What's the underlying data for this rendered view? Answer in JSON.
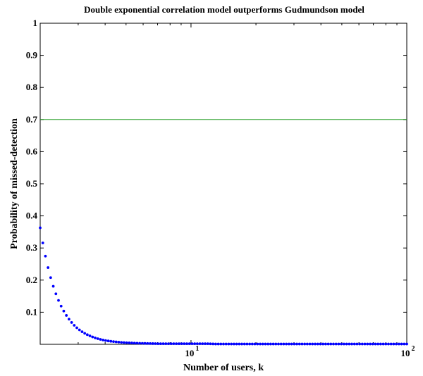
{
  "chart_data": {
    "type": "line",
    "title": "Double exponential correlation model outperforms Gudmundson model",
    "xlabel": "Number of users, k",
    "ylabel": "Probability of missed-detection",
    "xscale": "log",
    "xlim": [
      2,
      100
    ],
    "ylim": [
      0,
      1
    ],
    "grid": false,
    "legend": "none",
    "xticks": [
      {
        "value": 10,
        "base": "10",
        "exp": "1"
      },
      {
        "value": 100,
        "base": "10",
        "exp": "2"
      }
    ],
    "yticks": [
      "0.1",
      "0.2",
      "0.3",
      "0.4",
      "0.5",
      "0.6",
      "0.7",
      "0.8",
      "0.9",
      "1"
    ],
    "series": [
      {
        "style": "horizontal-line",
        "color": "#2ca02c",
        "x": [
          2,
          100
        ],
        "y": [
          0.7,
          0.7
        ]
      },
      {
        "style": "dots",
        "color": "#0000ff",
        "x": [
          2,
          3,
          4,
          5,
          6,
          7,
          8,
          9,
          10,
          11,
          12,
          13,
          14,
          15,
          16,
          17,
          18,
          19,
          20,
          21,
          22,
          23,
          24,
          25,
          26,
          27,
          28,
          29,
          30,
          31,
          32,
          33,
          34,
          35,
          36,
          37,
          38,
          39,
          40,
          41,
          42,
          43,
          44,
          45,
          46,
          47,
          48,
          49,
          50,
          51,
          52,
          53,
          54,
          55,
          56,
          57,
          58,
          59,
          60,
          61,
          62,
          63,
          64,
          65,
          66,
          67,
          68,
          69,
          70,
          71,
          72,
          73,
          74,
          75,
          76,
          77,
          78,
          79,
          80,
          81,
          82,
          83,
          84,
          85,
          86,
          87,
          88,
          89,
          90,
          91,
          92,
          93,
          94,
          95,
          96,
          97,
          98,
          99,
          100
        ],
        "y": [
          0.363,
          0.048,
          0.012,
          0.005,
          0.003,
          0.002,
          0.002,
          0.002,
          0.002,
          0.002,
          0.002,
          0.001,
          0.001,
          0.001,
          0.001,
          0.001,
          0.001,
          0.001,
          0.001,
          0.001,
          0.001,
          0.001,
          0.001,
          0.001,
          0.001,
          0.001,
          0.001,
          0.001,
          0.001,
          0.001,
          0.001,
          0.001,
          0.001,
          0.001,
          0.001,
          0.001,
          0.001,
          0.001,
          0.001,
          0.001,
          0.001,
          0.001,
          0.001,
          0.001,
          0.001,
          0.001,
          0.001,
          0.001,
          0.001,
          0.001,
          0.001,
          0.001,
          0.001,
          0.001,
          0.001,
          0.001,
          0.001,
          0.001,
          0.001,
          0.001,
          0.001,
          0.001,
          0.001,
          0.001,
          0.001,
          0.001,
          0.001,
          0.001,
          0.001,
          0.001,
          0.001,
          0.001,
          0.001,
          0.001,
          0.001,
          0.001,
          0.001,
          0.001,
          0.001,
          0.001,
          0.001,
          0.001,
          0.001,
          0.001,
          0.001,
          0.001,
          0.001,
          0.001,
          0.001,
          0.001,
          0.001,
          0.001,
          0.001,
          0.001,
          0.001,
          0.001,
          0.001,
          0.001,
          0.001
        ]
      }
    ]
  }
}
